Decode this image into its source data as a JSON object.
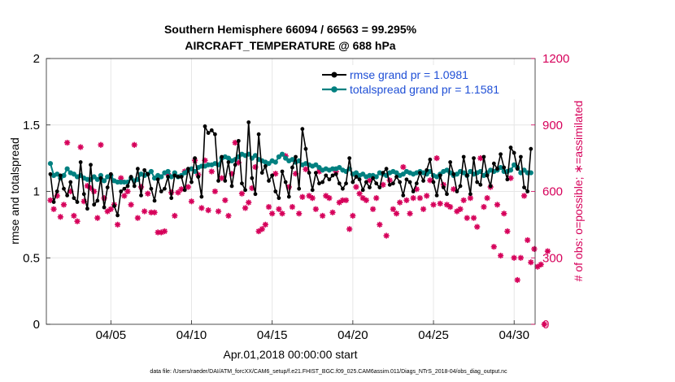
{
  "chart_data": {
    "type": "line",
    "title_line1": "Southern Hemisphere 66094 / 66563 = 99.295%",
    "title_line2": "AIRCRAFT_TEMPERATURE @ 688 hPa",
    "xlabel": "Apr.01,2018 00:00:00 start",
    "ylabel_left": "rmse and totalspread",
    "ylabel_right": "# of obs: o=possible; ∗=assimilated",
    "xlim": [
      1,
      31.3
    ],
    "ylim_left": [
      0,
      2
    ],
    "ylim_right": [
      0,
      1200
    ],
    "x_ticks": [
      5,
      10,
      15,
      20,
      25,
      30
    ],
    "x_tick_labels": [
      "04/05",
      "04/10",
      "04/15",
      "04/20",
      "04/25",
      "04/30"
    ],
    "y_ticks_left": [
      0,
      0.5,
      1,
      1.5,
      2
    ],
    "y_tick_labels_left": [
      "0",
      "0.5",
      "1",
      "1.5",
      "2"
    ],
    "y_ticks_right": [
      0,
      300,
      600,
      900,
      1200
    ],
    "y_tick_labels_right": [
      "0",
      "300",
      "600",
      "900",
      "1200"
    ],
    "footnote": "data file: /Users/raeder/DAI/ATM_forcXX/CAM6_setup/f.e21.FHIST_BGC.f09_025.CAM6assim.011/Diags_NTrS_2018-04/obs_diag_output.nc",
    "colors": {
      "rmse": "#000000",
      "spread": "#008080",
      "obs": "#d6005a",
      "legend_text": "#1f4fd6",
      "grid": "#e6e6e6"
    },
    "series": [
      {
        "name": "rmse grand pr = 1.0981",
        "key": "rmse",
        "axis": "left",
        "values": [
          1.13,
          0.92,
          1.0,
          1.12,
          1.02,
          0.97,
          1.07,
          0.95,
          0.92,
          1.22,
          0.98,
          0.87,
          1.2,
          0.9,
          0.93,
          1.1,
          0.88,
          1.03,
          1.13,
          0.89,
          0.82,
          1.0,
          1.02,
          1.04,
          1.11,
          1.04,
          1.17,
          0.97,
          1.16,
          1.13,
          1.02,
          0.93,
          1.09,
          1.0,
          1.02,
          1.11,
          0.95,
          1.12,
          1.11,
          1.11,
          1.01,
          1.17,
          1.07,
          1.25,
          1.11,
          0.96,
          1.49,
          1.44,
          1.46,
          1.43,
          1.08,
          1.26,
          1.08,
          1.22,
          1.04,
          1.2,
          1.38,
          1.06,
          1.01,
          1.52,
          1.1,
          0.98,
          1.43,
          1.14,
          1.19,
          1.08,
          1.12,
          1.0,
          0.95,
          1.15,
          1.07,
          0.96,
          1.18,
          1.26,
          1.02,
          1.47,
          1.32,
          1.14,
          1.01,
          1.14,
          1.06,
          1.07,
          1.12,
          1.09,
          1.12,
          1.13,
          1.06,
          1.02,
          1.06,
          1.25,
          1.07,
          1.11,
          1.09,
          1.01,
          1.07,
          1.03,
          1.1,
          1.06,
          1.03,
          1.14,
          1.17,
          1.05,
          1.06,
          1.11,
          1.07,
          0.97,
          1.09,
          1.07,
          1.0,
          1.06,
          1.14,
          1.08,
          1.16,
          1.24,
          1.07,
          0.97,
          1.12,
          1.03,
          0.98,
          1.22,
          1.13,
          1.0,
          1.04,
          1.26,
          1.12,
          0.98,
          1.25,
          1.07,
          1.05,
          1.26,
          1.12,
          1.04,
          1.21,
          1.17,
          1.28,
          1.18,
          1.09,
          1.33,
          1.29,
          1.17,
          1.26,
          1.03,
          1.0,
          1.32
        ]
      },
      {
        "name": "totalspread grand pr = 1.1581",
        "key": "spread",
        "axis": "left",
        "values": [
          1.21,
          1.12,
          1.13,
          1.1,
          1.12,
          1.17,
          1.14,
          1.13,
          1.11,
          1.12,
          1.1,
          1.09,
          1.09,
          1.11,
          1.09,
          1.12,
          1.08,
          1.11,
          1.12,
          1.08,
          1.07,
          1.07,
          1.07,
          1.07,
          1.1,
          1.08,
          1.09,
          1.13,
          1.12,
          1.13,
          1.15,
          1.1,
          1.12,
          1.11,
          1.14,
          1.15,
          1.11,
          1.14,
          1.11,
          1.12,
          1.14,
          1.16,
          1.17,
          1.15,
          1.18,
          1.19,
          1.19,
          1.2,
          1.2,
          1.21,
          1.2,
          1.25,
          1.26,
          1.25,
          1.23,
          1.24,
          1.26,
          1.28,
          1.27,
          1.28,
          1.25,
          1.27,
          1.24,
          1.23,
          1.22,
          1.21,
          1.23,
          1.22,
          1.26,
          1.28,
          1.25,
          1.23,
          1.24,
          1.22,
          1.23,
          1.2,
          1.21,
          1.2,
          1.19,
          1.2,
          1.18,
          1.16,
          1.17,
          1.16,
          1.17,
          1.17,
          1.18,
          1.16,
          1.15,
          1.17,
          1.13,
          1.14,
          1.12,
          1.13,
          1.11,
          1.12,
          1.12,
          1.11,
          1.14,
          1.13,
          1.12,
          1.14,
          1.15,
          1.14,
          1.12,
          1.13,
          1.15,
          1.14,
          1.13,
          1.14,
          1.15,
          1.14,
          1.13,
          1.15,
          1.12,
          1.11,
          1.13,
          1.15,
          1.16,
          1.14,
          1.12,
          1.13,
          1.15,
          1.14,
          1.12,
          1.15,
          1.13,
          1.14,
          1.15,
          1.12,
          1.14,
          1.16,
          1.15,
          1.16,
          1.18,
          1.15,
          1.15,
          1.16,
          1.2,
          1.18,
          1.14,
          1.16,
          1.14,
          1.14
        ]
      },
      {
        "name": "obs assimilated",
        "key": "obs",
        "axis": "right",
        "values": [
          560,
          520,
          580,
          485,
          540,
          820,
          600,
          490,
          465,
          800,
          555,
          625,
          615,
          600,
          480,
          810,
          570,
          510,
          520,
          540,
          450,
          660,
          580,
          600,
          540,
          810,
          480,
          620,
          510,
          590,
          505,
          505,
          415,
          415,
          420,
          680,
          595,
          490,
          595,
          610,
          690,
          620,
          555,
          740,
          675,
          525,
          740,
          515,
          690,
          600,
          510,
          660,
          560,
          490,
          680,
          820,
          730,
          590,
          525,
          550,
          615,
          710,
          420,
          430,
          450,
          530,
          500,
          680,
          520,
          500,
          760,
          620,
          530,
          680,
          500,
          575,
          700,
          580,
          570,
          520,
          690,
          490,
          580,
          570,
          505,
          690,
          550,
          560,
          560,
          430,
          490,
          620,
          590,
          570,
          560,
          650,
          520,
          570,
          450,
          630,
          400,
          650,
          520,
          500,
          550,
          710,
          560,
          500,
          570,
          610,
          570,
          520,
          580,
          650,
          540,
          750,
          545,
          630,
          540,
          530,
          610,
          510,
          520,
          560,
          480,
          570,
          480,
          440,
          750,
          530,
          570,
          620,
          350,
          540,
          310,
          500,
          420,
          660,
          300,
          200,
          300,
          580,
          380,
          280,
          340,
          260,
          270,
          0,
          330
        ]
      }
    ]
  },
  "legend": {
    "rmse_label": "rmse grand pr = 1.0981",
    "spread_label": "totalspread grand pr = 1.1581"
  }
}
